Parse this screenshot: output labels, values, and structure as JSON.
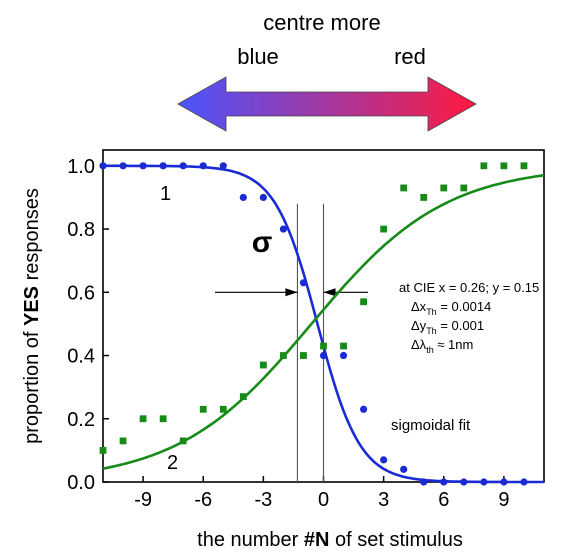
{
  "header": {
    "top_label": "centre more",
    "left_label": "blue",
    "right_label": "red",
    "arrow_colors": {
      "left": "#4a55ff",
      "right": "#ff1a40"
    }
  },
  "chart_data": {
    "type": "scatter",
    "xlabel": "the number #N of set stimulus",
    "xlabel_parts": {
      "pre": "the number ",
      "bold": "#N",
      "post": " of set stimulus"
    },
    "ylabel": "proportion of YES responses",
    "ylabel_parts": {
      "pre": "proportion of ",
      "bold": "YES",
      "post": " responses"
    },
    "xlim": [
      -11,
      11
    ],
    "ylim": [
      0,
      1.05
    ],
    "xticks": [
      -9,
      -6,
      -3,
      0,
      3,
      6,
      9
    ],
    "yticks": [
      0.0,
      0.2,
      0.4,
      0.6,
      0.8,
      1.0
    ],
    "xtick_labels": [
      "-9",
      "-6",
      "-3",
      "0",
      "3",
      "6",
      "9"
    ],
    "ytick_labels": [
      "0.0",
      "0.2",
      "0.4",
      "0.6",
      "0.8",
      "1.0"
    ],
    "grid": false,
    "series": [
      {
        "label": "1",
        "color": "#1a2bd6",
        "marker": "circle",
        "x": [
          -11,
          -10,
          -9,
          -8,
          -7,
          -6,
          -5,
          -4,
          -3,
          -2,
          -1,
          0,
          1,
          2,
          3,
          4,
          5,
          6,
          7,
          8,
          9,
          10
        ],
        "y": [
          1.0,
          1.0,
          1.0,
          1.0,
          1.0,
          1.0,
          1.0,
          0.9,
          0.9,
          0.8,
          0.63,
          0.4,
          0.4,
          0.23,
          0.07,
          0.04,
          0.0,
          0.0,
          0.0,
          0.0,
          0.0,
          0.0
        ],
        "fit": {
          "x0": -0.3,
          "k": 0.95
        }
      },
      {
        "label": "2",
        "color": "#178a17",
        "marker": "square",
        "x": [
          -11,
          -10,
          -9,
          -8,
          -7,
          -6,
          -5,
          -4,
          -3,
          -2,
          -1,
          0,
          1,
          2,
          3,
          4,
          5,
          6,
          7,
          8,
          9,
          10
        ],
        "y": [
          0.1,
          0.13,
          0.2,
          0.2,
          0.13,
          0.23,
          0.23,
          0.27,
          0.37,
          0.4,
          0.4,
          0.43,
          0.43,
          0.57,
          0.8,
          0.93,
          0.9,
          0.93,
          0.93,
          1.0,
          1.0,
          1.0
        ],
        "fit": {
          "x0": -0.6,
          "k": 0.3
        }
      }
    ],
    "annotations": {
      "sigma": "σ",
      "sigma_lines_x": [
        -1.3,
        0
      ],
      "sigma_arrow_y": 0.6,
      "fit_label": "sigmoidal fit",
      "cie_lines": [
        {
          "pre": "at CIE x = 0.26; y = 0.15",
          "sub": "",
          "post": ""
        },
        {
          "pre": "Δx",
          "sub": "Th",
          "post": "  =  0.0014"
        },
        {
          "pre": "Δy",
          "sub": "Th",
          "post": "  =  0.001"
        },
        {
          "pre": "Δλ",
          "sub": "th",
          "post": "    ≈ 1nm"
        }
      ]
    }
  }
}
